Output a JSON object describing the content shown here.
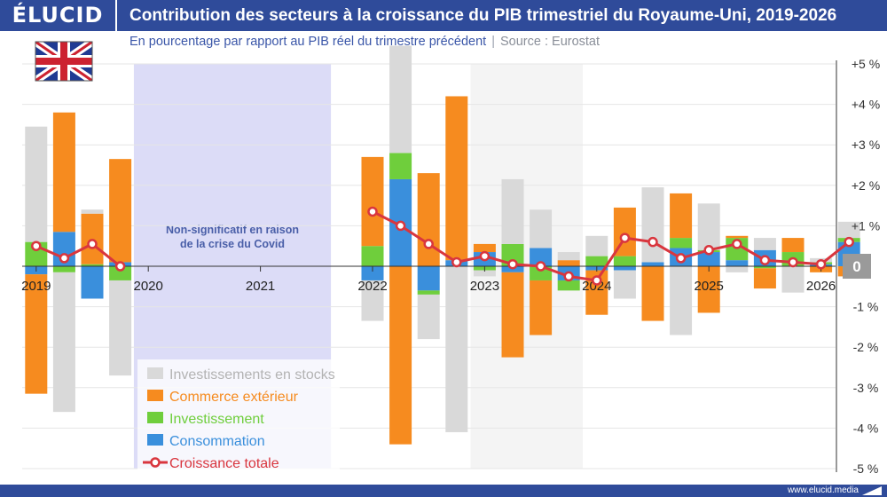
{
  "brand": {
    "logo_text": "ÉLUCID",
    "url": "www.elucid.media"
  },
  "header": {
    "title": "Contribution des secteurs à la croissance du PIB trimestriel du Royaume-Uni, 2019-2026",
    "subtitle": "En pourcentage par rapport au PIB réel du trimestre précédent",
    "separator": "|",
    "source": "Source : Eurostat"
  },
  "flag": {
    "icon": "uk-flag-icon"
  },
  "colors": {
    "header_bg": "#2f4b9a",
    "stocks": "#d9d9d9",
    "trade": "#f68b1f",
    "investment": "#6fce3c",
    "consumption": "#3a8fdc",
    "total": "#d9363e",
    "covid_band": "#dcdcf7",
    "covid_text": "#4a5fa8"
  },
  "chart_data": {
    "type": "bar",
    "stacked": true,
    "ylim": [
      -5,
      5
    ],
    "yticks": [
      {
        "value": 5,
        "label": "+5 %"
      },
      {
        "value": 4,
        "label": "+4 %"
      },
      {
        "value": 3,
        "label": "+3 %"
      },
      {
        "value": 2,
        "label": "+2 %"
      },
      {
        "value": 1,
        "label": "+1 %"
      },
      {
        "value": 0,
        "label": "0"
      },
      {
        "value": -1,
        "label": "-1 %"
      },
      {
        "value": -2,
        "label": "-2 %"
      },
      {
        "value": -3,
        "label": "-3 %"
      },
      {
        "value": -4,
        "label": "-4 %"
      },
      {
        "value": -5,
        "label": "-5 %"
      }
    ],
    "years": [
      "2019",
      "2020",
      "2021",
      "2022",
      "2023",
      "2024",
      "2025",
      "2026"
    ],
    "covid_annotation": [
      "Non-significatif en raison",
      "de la crise du Covid"
    ],
    "legend": [
      "Investissements en stocks",
      "Commerce extérieur",
      "Investissement",
      "Consommation",
      "Croissance totale"
    ],
    "series_colors": [
      "#d9d9d9",
      "#f68b1f",
      "#6fce3c",
      "#3a8fdc",
      "#d9363e"
    ],
    "quarters": [
      {
        "q": "2019-Q1",
        "consumption": -0.2,
        "investment": 0.6,
        "trade": -2.95,
        "stocks": 2.85,
        "total": 0.5
      },
      {
        "q": "2019-Q2",
        "consumption": 0.85,
        "investment": -0.15,
        "trade": 2.95,
        "stocks": -3.45,
        "total": 0.2
      },
      {
        "q": "2019-Q3",
        "consumption": -0.8,
        "investment": 0.05,
        "trade": 1.25,
        "stocks": 0.1,
        "total": 0.55
      },
      {
        "q": "2019-Q4",
        "consumption": 0.1,
        "investment": -0.35,
        "trade": 2.55,
        "stocks": -2.35,
        "total": 0.0
      },
      {
        "q": "2022-Q1",
        "consumption": -0.35,
        "investment": 0.5,
        "trade": 2.2,
        "stocks": -1.0,
        "total": 1.35
      },
      {
        "q": "2022-Q2",
        "consumption": 2.15,
        "investment": 0.65,
        "trade": -4.4,
        "stocks": 2.65,
        "total": 1.0
      },
      {
        "q": "2022-Q3",
        "consumption": -0.6,
        "investment": -0.1,
        "trade": 2.3,
        "stocks": -1.1,
        "total": 0.55
      },
      {
        "q": "2022-Q4",
        "consumption": 0.15,
        "investment": 0.0,
        "trade": 4.05,
        "stocks": -4.1,
        "total": 0.1
      },
      {
        "q": "2023-Q1",
        "consumption": 0.35,
        "investment": -0.1,
        "trade": 0.2,
        "stocks": -0.15,
        "total": 0.25
      },
      {
        "q": "2023-Q2",
        "consumption": -0.15,
        "investment": 0.55,
        "trade": -2.1,
        "stocks": 1.6,
        "total": 0.05
      },
      {
        "q": "2023-Q3",
        "consumption": 0.45,
        "investment": -0.35,
        "trade": -1.35,
        "stocks": 0.95,
        "total": 0.0
      },
      {
        "q": "2023-Q4",
        "consumption": -0.35,
        "investment": -0.25,
        "trade": 0.15,
        "stocks": 0.2,
        "total": -0.25
      },
      {
        "q": "2024-Q1",
        "consumption": -0.1,
        "investment": 0.25,
        "trade": -1.1,
        "stocks": 0.5,
        "total": -0.35
      },
      {
        "q": "2024-Q2",
        "consumption": -0.1,
        "investment": 0.25,
        "trade": 1.2,
        "stocks": -0.7,
        "total": 0.7
      },
      {
        "q": "2024-Q3",
        "consumption": 0.1,
        "investment": 0.0,
        "trade": -1.35,
        "stocks": 1.85,
        "total": 0.6
      },
      {
        "q": "2024-Q4",
        "consumption": 0.45,
        "investment": 0.25,
        "trade": 1.1,
        "stocks": -1.7,
        "total": 0.2
      },
      {
        "q": "2025-Q1",
        "consumption": 0.35,
        "investment": 0.05,
        "trade": -1.15,
        "stocks": 1.15,
        "total": 0.4
      },
      {
        "q": "2025-Q2",
        "consumption": 0.15,
        "investment": 0.55,
        "trade": 0.05,
        "stocks": -0.15,
        "total": 0.55
      },
      {
        "q": "2025-Q3",
        "consumption": 0.4,
        "investment": -0.05,
        "trade": -0.5,
        "stocks": 0.3,
        "total": 0.15
      },
      {
        "q": "2025-Q4",
        "consumption": 0.0,
        "investment": 0.35,
        "trade": 0.35,
        "stocks": -0.65,
        "total": 0.1
      },
      {
        "q": "2026-Q1",
        "consumption": 0.05,
        "investment": 0.05,
        "trade": -0.15,
        "stocks": 0.1,
        "total": 0.05
      },
      {
        "q": "2026-Q2",
        "consumption": 0.6,
        "investment": 0.1,
        "trade": -0.25,
        "stocks": 0.4,
        "total": 0.6
      }
    ]
  }
}
